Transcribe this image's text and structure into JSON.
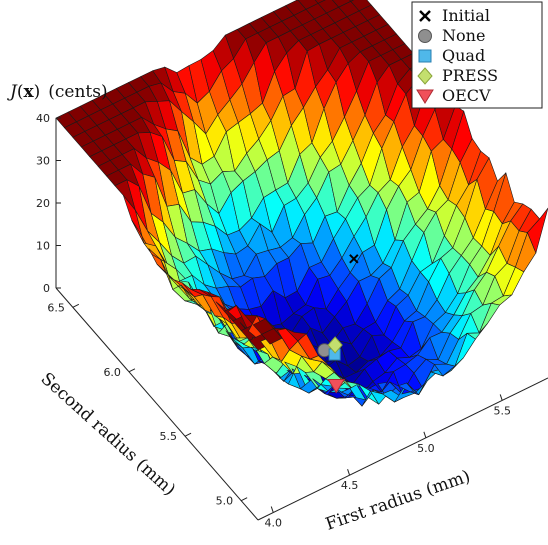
{
  "chart_data": {
    "type": "surface3d",
    "zlabel_prefix": "J",
    "zlabel_arg": "x",
    "zlabel_units": "(cents)",
    "xlabel": "First radius (mm)",
    "ylabel": "Second radius (mm)",
    "x_ticks": [
      "4.0",
      "4.5",
      "5.0",
      "5.5"
    ],
    "y_ticks": [
      "5.0",
      "5.5",
      "6.0",
      "6.5"
    ],
    "z_ticks": [
      "0",
      "10",
      "20",
      "30",
      "40"
    ],
    "xlim": [
      3.9,
      5.8
    ],
    "ylim": [
      4.85,
      6.65
    ],
    "zlim": [
      0,
      40
    ],
    "grid": false,
    "legend_position": "top-right",
    "legend": [
      {
        "label": "Initial",
        "marker": "x",
        "color": "#000000"
      },
      {
        "label": "None",
        "marker": "circle",
        "color": "#8f8f8f"
      },
      {
        "label": "Quad",
        "marker": "square",
        "color": "#4fb8ea"
      },
      {
        "label": "PRESS",
        "marker": "diamond",
        "color": "#c3df6e"
      },
      {
        "label": "OECV",
        "marker": "triangle-down",
        "color": "#f0505a"
      }
    ],
    "points": [
      {
        "name": "Initial",
        "x": 5.3,
        "y": 5.9,
        "z": 5
      },
      {
        "name": "None",
        "x": 4.85,
        "y": 5.55,
        "z": 2
      },
      {
        "name": "Quad",
        "x": 4.88,
        "y": 5.5,
        "z": 2
      },
      {
        "name": "PRESS",
        "x": 4.92,
        "y": 5.55,
        "z": 2
      },
      {
        "name": "OECV",
        "x": 4.78,
        "y": 5.35,
        "z": 1
      }
    ],
    "surface_model": {
      "minimum_x": 4.85,
      "minimum_y": 5.5,
      "minimum_z": 1,
      "max_z": 40,
      "colormap": "jet"
    }
  }
}
